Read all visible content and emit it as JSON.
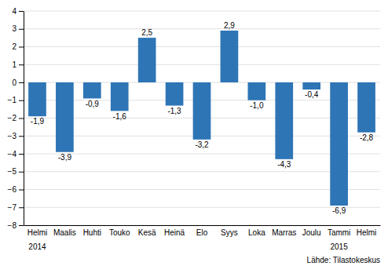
{
  "chart_data": {
    "type": "bar",
    "categories": [
      "Helmi",
      "Maalis",
      "Huhti",
      "Touko",
      "Kesä",
      "Heinä",
      "Elo",
      "Syys",
      "Loka",
      "Marras",
      "Joulu",
      "Tammi",
      "Helmi"
    ],
    "values": [
      -1.9,
      -3.9,
      -0.9,
      -1.6,
      2.5,
      -1.3,
      -3.2,
      2.9,
      -1.0,
      -4.3,
      -0.4,
      -6.9,
      -2.8
    ],
    "value_labels": [
      "-1,9",
      "-3,9",
      "-0,9",
      "-1,6",
      "2,5",
      "-1,3",
      "-3,2",
      "2,9",
      "-1,0",
      "-4,3",
      "-0,4",
      "-6,9",
      "-2,8"
    ],
    "data_labels": true,
    "color": "#2e75b6",
    "ylim": [
      -8,
      4
    ],
    "yticks": [
      -8,
      -7,
      -6,
      -5,
      -4,
      -3,
      -2,
      -1,
      0,
      1,
      2,
      3,
      4
    ],
    "grid": true,
    "annotations": [
      {
        "text": "2014",
        "x": 0
      },
      {
        "text": "2015",
        "x": 11
      }
    ],
    "source": "Lähde: Tilastokeskus"
  }
}
